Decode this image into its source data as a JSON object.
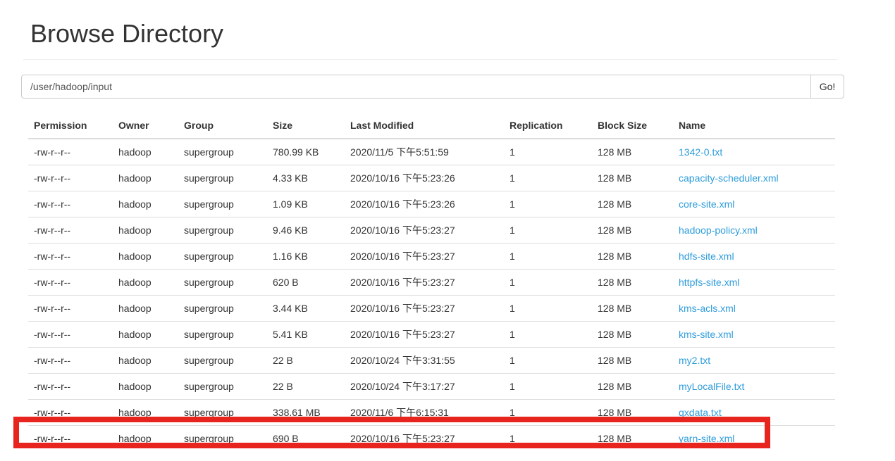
{
  "page": {
    "title": "Browse Directory"
  },
  "path_bar": {
    "value": "/user/hadoop/input",
    "go_label": "Go!"
  },
  "table": {
    "columns": [
      "Permission",
      "Owner",
      "Group",
      "Size",
      "Last Modified",
      "Replication",
      "Block Size",
      "Name"
    ],
    "rows": [
      {
        "permission": "-rw-r--r--",
        "owner": "hadoop",
        "group": "supergroup",
        "size": "780.99 KB",
        "modified": "2020/11/5 下午5:51:59",
        "replication": "1",
        "block_size": "128 MB",
        "name": "1342-0.txt"
      },
      {
        "permission": "-rw-r--r--",
        "owner": "hadoop",
        "group": "supergroup",
        "size": "4.33 KB",
        "modified": "2020/10/16 下午5:23:26",
        "replication": "1",
        "block_size": "128 MB",
        "name": "capacity-scheduler.xml"
      },
      {
        "permission": "-rw-r--r--",
        "owner": "hadoop",
        "group": "supergroup",
        "size": "1.09 KB",
        "modified": "2020/10/16 下午5:23:26",
        "replication": "1",
        "block_size": "128 MB",
        "name": "core-site.xml"
      },
      {
        "permission": "-rw-r--r--",
        "owner": "hadoop",
        "group": "supergroup",
        "size": "9.46 KB",
        "modified": "2020/10/16 下午5:23:27",
        "replication": "1",
        "block_size": "128 MB",
        "name": "hadoop-policy.xml"
      },
      {
        "permission": "-rw-r--r--",
        "owner": "hadoop",
        "group": "supergroup",
        "size": "1.16 KB",
        "modified": "2020/10/16 下午5:23:27",
        "replication": "1",
        "block_size": "128 MB",
        "name": "hdfs-site.xml"
      },
      {
        "permission": "-rw-r--r--",
        "owner": "hadoop",
        "group": "supergroup",
        "size": "620 B",
        "modified": "2020/10/16 下午5:23:27",
        "replication": "1",
        "block_size": "128 MB",
        "name": "httpfs-site.xml"
      },
      {
        "permission": "-rw-r--r--",
        "owner": "hadoop",
        "group": "supergroup",
        "size": "3.44 KB",
        "modified": "2020/10/16 下午5:23:27",
        "replication": "1",
        "block_size": "128 MB",
        "name": "kms-acls.xml"
      },
      {
        "permission": "-rw-r--r--",
        "owner": "hadoop",
        "group": "supergroup",
        "size": "5.41 KB",
        "modified": "2020/10/16 下午5:23:27",
        "replication": "1",
        "block_size": "128 MB",
        "name": "kms-site.xml"
      },
      {
        "permission": "-rw-r--r--",
        "owner": "hadoop",
        "group": "supergroup",
        "size": "22 B",
        "modified": "2020/10/24 下午3:31:55",
        "replication": "1",
        "block_size": "128 MB",
        "name": "my2.txt"
      },
      {
        "permission": "-rw-r--r--",
        "owner": "hadoop",
        "group": "supergroup",
        "size": "22 B",
        "modified": "2020/10/24 下午3:17:27",
        "replication": "1",
        "block_size": "128 MB",
        "name": "myLocalFile.txt"
      },
      {
        "permission": "-rw-r--r--",
        "owner": "hadoop",
        "group": "supergroup",
        "size": "338.61 MB",
        "modified": "2020/11/6 下午6:15:31",
        "replication": "1",
        "block_size": "128 MB",
        "name": "qxdata.txt"
      },
      {
        "permission": "-rw-r--r--",
        "owner": "hadoop",
        "group": "supergroup",
        "size": "690 B",
        "modified": "2020/10/16 下午5:23:27",
        "replication": "1",
        "block_size": "128 MB",
        "name": "yarn-site.xml"
      }
    ]
  },
  "highlight": {
    "row_index": 10,
    "row_name": "qxdata.txt",
    "color": "#e8241f"
  },
  "colors": {
    "link": "#2d9cdb",
    "text": "#333333",
    "table_border": "#dddddd"
  }
}
